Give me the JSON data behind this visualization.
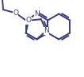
{
  "bg_color": "#ffffff",
  "bond_color": "#3a3a7a",
  "bond_width": 1.4,
  "font_size": 6.5,
  "fig_width": 1.06,
  "fig_height": 0.97,
  "dpi": 100,
  "xlim": [
    0,
    106
  ],
  "ylim": [
    0,
    97
  ]
}
